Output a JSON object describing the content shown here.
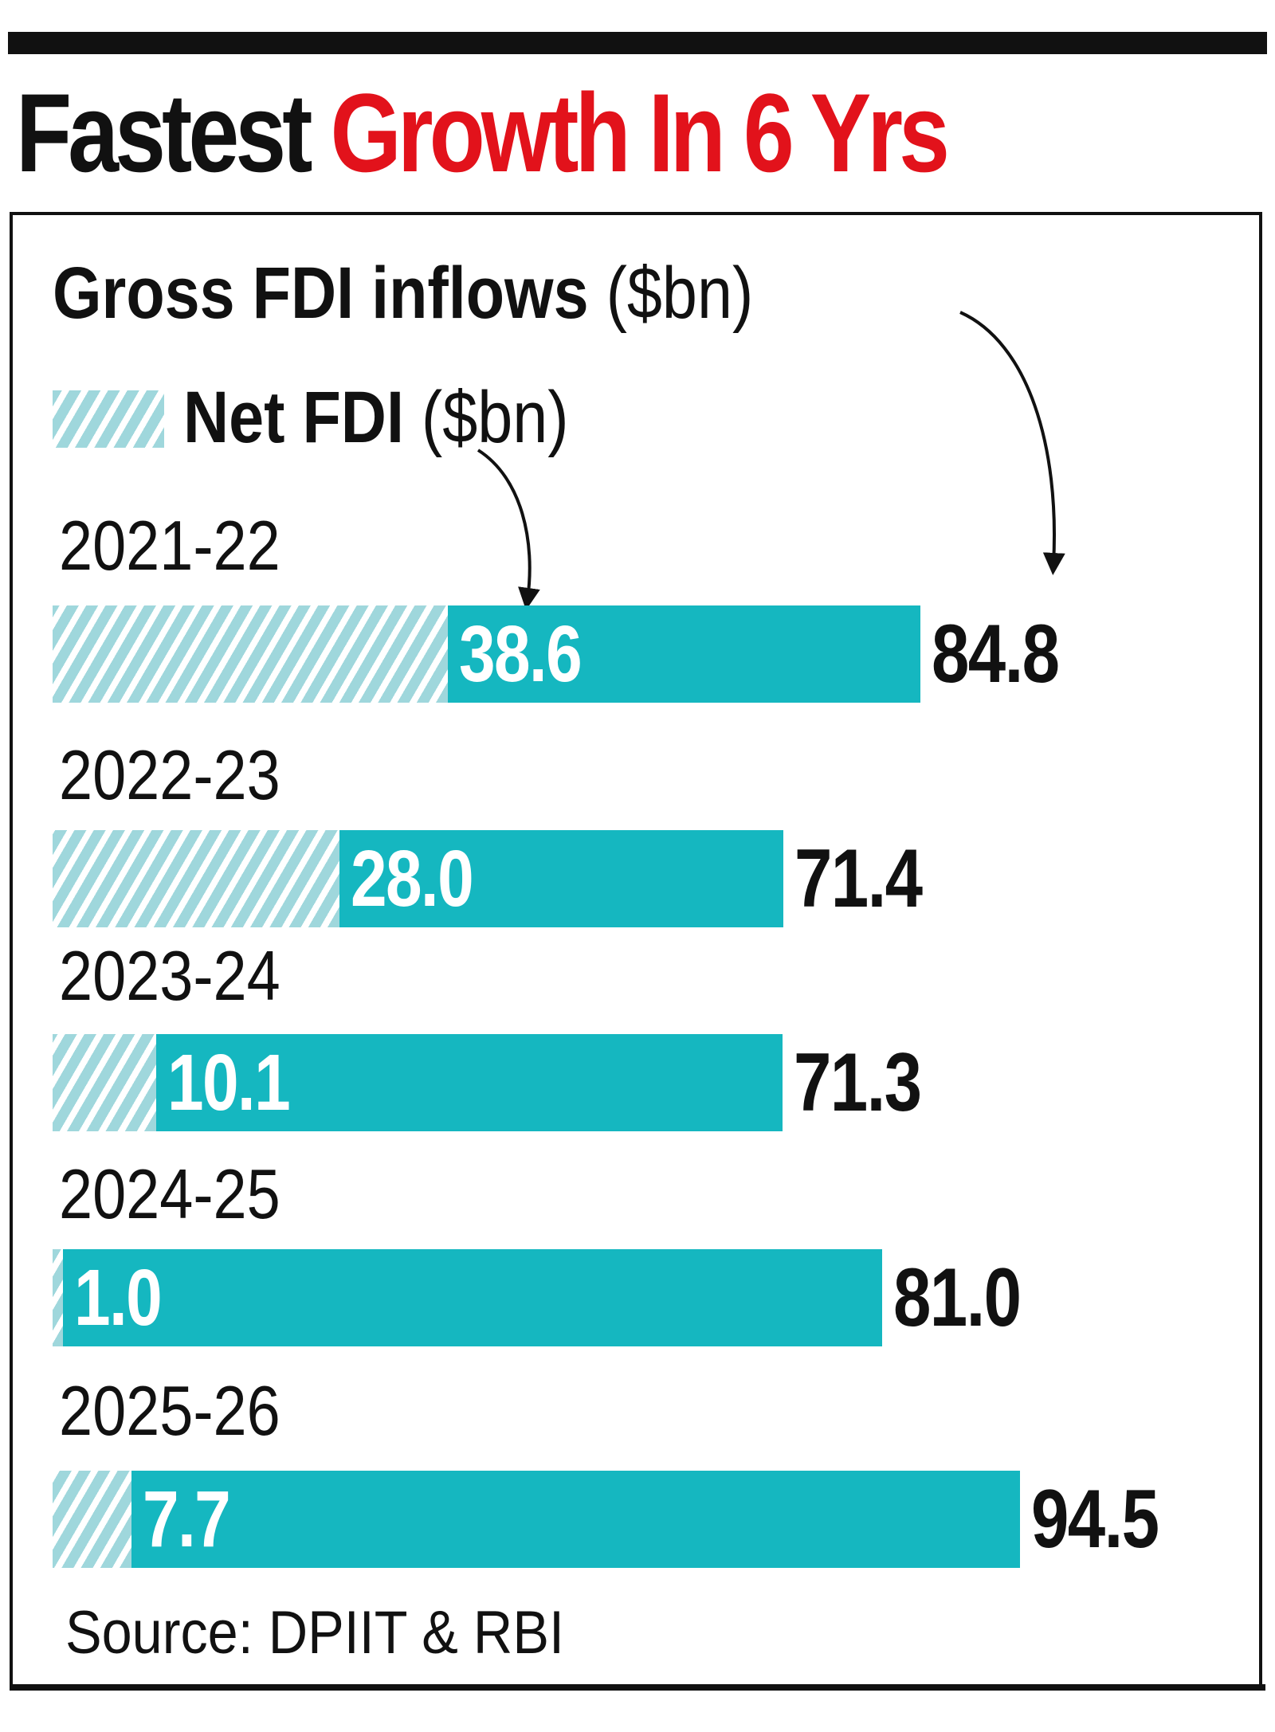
{
  "title": {
    "part1": "Fastest",
    "part2": "Growth In 6 Yrs"
  },
  "legend": {
    "gross_bold": "Gross FDI inflows",
    "gross_unit": "($bn)",
    "net_bold": "Net FDI",
    "net_unit": "($bn)"
  },
  "colors": {
    "gross": "#15b7c0",
    "net_hatch": "#9fd7dc",
    "title_red": "#e2121b",
    "text": "#111111"
  },
  "chart_data": {
    "type": "bar",
    "orientation": "horizontal",
    "categories": [
      "2021-22",
      "2022-23",
      "2023-24",
      "2024-25",
      "2025-26"
    ],
    "series": [
      {
        "name": "Gross FDI inflows ($bn)",
        "values": [
          84.8,
          71.4,
          71.3,
          81.0,
          94.5
        ]
      },
      {
        "name": "Net FDI ($bn)",
        "values": [
          38.6,
          28.0,
          10.1,
          1.0,
          7.7
        ]
      }
    ],
    "value_labels": {
      "gross": [
        "84.8",
        "71.4",
        "71.3",
        "81.0",
        "94.5"
      ],
      "net": [
        "38.6",
        "28.0",
        "10.1",
        "1.0",
        "7.7"
      ]
    },
    "xlim": [
      0,
      94.5
    ],
    "grid": false,
    "legend": "top-left"
  },
  "source": "Source: DPIIT & RBI"
}
